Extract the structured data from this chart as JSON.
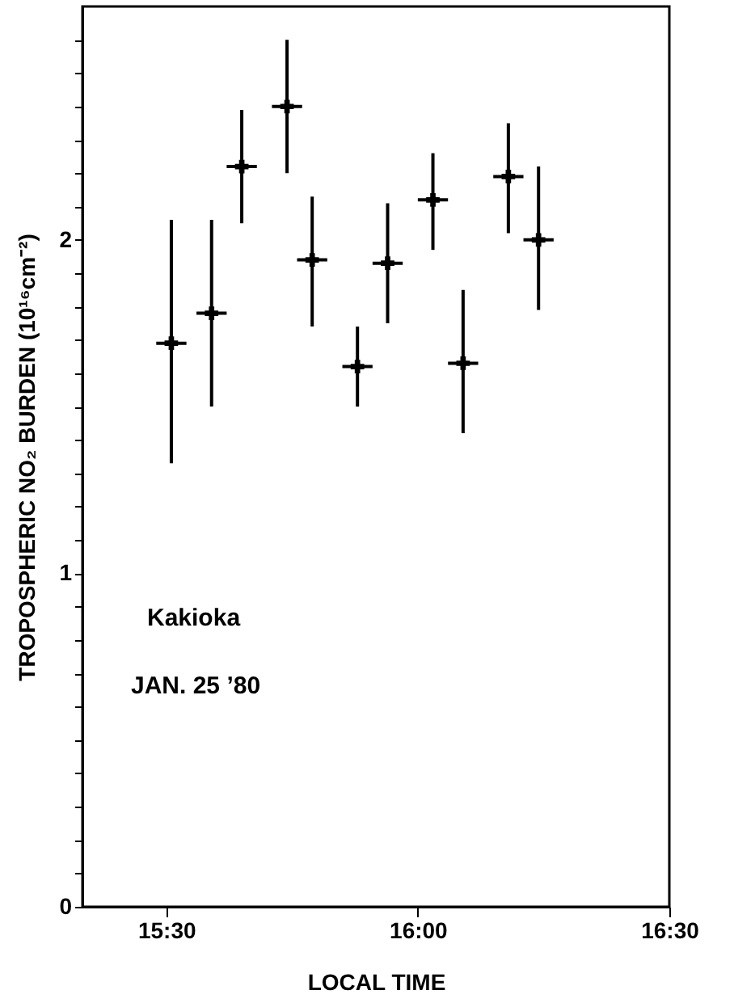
{
  "chart_data": {
    "type": "scatter",
    "xlabel": "LOCAL TIME",
    "ylabel": "TROPOSPHERIC NO₂ BURDEN  (10¹⁶cm⁻²)",
    "x": [
      15.51,
      15.59,
      15.65,
      15.74,
      15.79,
      15.88,
      15.94,
      16.03,
      16.09,
      16.18,
      16.24
    ],
    "series": [
      {
        "color": "#000000",
        "values": [
          1.69,
          1.78,
          2.22,
          2.4,
          1.94,
          1.62,
          1.93,
          2.12,
          1.63,
          2.19,
          2.0
        ],
        "errors": [
          [
            1.33,
            2.06
          ],
          [
            1.5,
            2.06
          ],
          [
            2.05,
            2.39
          ],
          [
            2.2,
            2.6
          ],
          [
            1.74,
            2.13
          ],
          [
            1.5,
            1.74
          ],
          [
            1.75,
            2.11
          ],
          [
            1.97,
            2.26
          ],
          [
            1.42,
            1.85
          ],
          [
            2.02,
            2.35
          ],
          [
            1.79,
            2.22
          ]
        ],
        "xerrors": [
          0.03,
          0.03,
          0.03,
          0.03,
          0.03,
          0.03,
          0.03,
          0.03,
          0.03,
          0.03,
          0.03
        ]
      }
    ],
    "marker": "cross",
    "xlim": [
      15.3333,
      16.5
    ],
    "xticks": [
      {
        "value": 15.5,
        "label": "15:30"
      },
      {
        "value": 16.0,
        "label": "16:00"
      },
      {
        "value": 16.5,
        "label": "16:30"
      }
    ],
    "ylim": [
      0,
      2.7
    ],
    "yticks": [
      0,
      {
        "value": 0.1,
        "label": null
      },
      {
        "value": 0.2,
        "label": null
      },
      {
        "value": 0.3,
        "label": null
      },
      {
        "value": 0.4,
        "label": null
      },
      {
        "value": 0.5,
        "label": null
      },
      {
        "value": 0.6,
        "label": null
      },
      {
        "value": 0.7,
        "label": null
      },
      {
        "value": 0.8,
        "label": null
      },
      {
        "value": 0.9,
        "label": null
      },
      1,
      {
        "value": 1.1,
        "label": null
      },
      {
        "value": 1.2,
        "label": null
      },
      {
        "value": 1.3,
        "label": null
      },
      {
        "value": 1.4,
        "label": null
      },
      {
        "value": 1.5,
        "label": null
      },
      {
        "value": 1.6,
        "label": null
      },
      {
        "value": 1.7,
        "label": null
      },
      {
        "value": 1.8,
        "label": null
      },
      {
        "value": 1.9,
        "label": null
      },
      2,
      {
        "value": 2.1,
        "label": null
      },
      {
        "value": 2.2,
        "label": null
      },
      {
        "value": 2.3,
        "label": null
      },
      {
        "value": 2.4,
        "label": null
      },
      {
        "value": 2.5,
        "label": null
      },
      {
        "value": 2.6,
        "label": null
      }
    ],
    "annotations": [
      "Kakioka",
      "JAN. 25 ’80"
    ],
    "grid": false
  }
}
